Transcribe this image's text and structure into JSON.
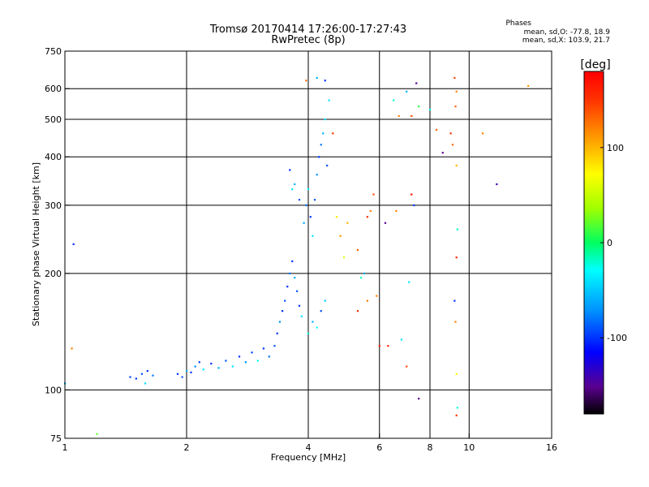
{
  "title_line1": "Tromsø 20170414 17:26:00-17:27:43",
  "title_line2": "RwPretec (8p)",
  "phases": {
    "title": "Phases",
    "o_line": "mean, sd,O: -77.8, 18.9",
    "x_line": "mean, sd,X: 103.9, 21.7"
  },
  "colorbar": {
    "unit_label": "[deg]",
    "ticks": [
      {
        "value": 100,
        "label": "100"
      },
      {
        "value": 0,
        "label": "0"
      },
      {
        "value": -100,
        "label": "-100"
      }
    ],
    "range": [
      -180,
      180
    ]
  },
  "chart_data": {
    "type": "scatter",
    "xlabel": "Frequency [MHz]",
    "ylabel": "Stationary phase Virtual Height [km]",
    "xscale": "log",
    "yscale": "log",
    "xlim": [
      1,
      16
    ],
    "ylim": [
      75,
      750
    ],
    "xticks": [
      {
        "value": 1,
        "label": "1"
      },
      {
        "value": 2,
        "label": "2"
      },
      {
        "value": 4,
        "label": "4"
      },
      {
        "value": 6,
        "label": "6"
      },
      {
        "value": 8,
        "label": "8"
      },
      {
        "value": 10,
        "label": "10"
      },
      {
        "value": 16,
        "label": "16"
      }
    ],
    "yticks": [
      {
        "value": 75,
        "label": "75"
      },
      {
        "value": 100,
        "label": "100"
      },
      {
        "value": 200,
        "label": "200"
      },
      {
        "value": 300,
        "label": "300"
      },
      {
        "value": 400,
        "label": "400"
      },
      {
        "value": 500,
        "label": "500"
      },
      {
        "value": 600,
        "label": "600"
      },
      {
        "value": 750,
        "label": "750"
      }
    ],
    "vgrid": [
      2,
      4,
      6,
      8,
      10
    ],
    "hgrid": [
      100,
      200,
      300,
      400,
      500,
      600
    ],
    "points": [
      [
        1.0,
        104,
        -60
      ],
      [
        1.05,
        238,
        -100
      ],
      [
        1.04,
        128,
        120
      ],
      [
        1.2,
        77,
        20
      ],
      [
        1.45,
        108,
        -95
      ],
      [
        1.5,
        107,
        -100
      ],
      [
        1.55,
        110,
        -90
      ],
      [
        1.58,
        104,
        -40
      ],
      [
        1.6,
        112,
        -100
      ],
      [
        1.65,
        109,
        -80
      ],
      [
        1.9,
        110,
        -100
      ],
      [
        1.95,
        108,
        -90
      ],
      [
        2.0,
        112,
        -60
      ],
      [
        2.05,
        111,
        -100
      ],
      [
        2.1,
        115,
        -70
      ],
      [
        2.15,
        118,
        -95
      ],
      [
        2.2,
        113,
        -40
      ],
      [
        2.3,
        117,
        -100
      ],
      [
        2.4,
        114,
        -60
      ],
      [
        2.5,
        119,
        -90
      ],
      [
        2.6,
        115,
        -40
      ],
      [
        2.7,
        122,
        -100
      ],
      [
        2.8,
        118,
        -70
      ],
      [
        2.9,
        125,
        -95
      ],
      [
        3.0,
        119,
        -30
      ],
      [
        3.1,
        128,
        -100
      ],
      [
        3.2,
        122,
        -80
      ],
      [
        3.3,
        130,
        -90
      ],
      [
        3.35,
        140,
        -100
      ],
      [
        3.4,
        150,
        -70
      ],
      [
        3.45,
        160,
        -100
      ],
      [
        3.5,
        170,
        -90
      ],
      [
        3.55,
        185,
        -100
      ],
      [
        3.6,
        200,
        -80
      ],
      [
        3.65,
        215,
        -100
      ],
      [
        3.7,
        195,
        -60
      ],
      [
        3.75,
        180,
        -90
      ],
      [
        3.8,
        165,
        -100
      ],
      [
        3.85,
        155,
        -40
      ],
      [
        3.9,
        270,
        -60
      ],
      [
        3.95,
        300,
        -80
      ],
      [
        4.0,
        330,
        -30
      ],
      [
        4.05,
        280,
        -100
      ],
      [
        4.1,
        250,
        -40
      ],
      [
        4.15,
        310,
        -90
      ],
      [
        4.2,
        360,
        -70
      ],
      [
        4.25,
        400,
        -100
      ],
      [
        4.3,
        430,
        -80
      ],
      [
        4.35,
        460,
        -60
      ],
      [
        4.4,
        500,
        -40
      ],
      [
        4.45,
        380,
        -90
      ],
      [
        4.0,
        140,
        -20
      ],
      [
        4.1,
        150,
        -60
      ],
      [
        4.2,
        145,
        -30
      ],
      [
        4.3,
        160,
        -90
      ],
      [
        4.4,
        170,
        -50
      ],
      [
        3.7,
        340,
        -60
      ],
      [
        3.6,
        370,
        -100
      ],
      [
        3.65,
        330,
        -40
      ],
      [
        3.8,
        310,
        -90
      ],
      [
        4.2,
        640,
        -60
      ],
      [
        4.4,
        630,
        -100
      ],
      [
        4.5,
        560,
        -40
      ],
      [
        3.95,
        630,
        130
      ],
      [
        4.6,
        460,
        150
      ],
      [
        4.7,
        280,
        80
      ],
      [
        4.8,
        250,
        110
      ],
      [
        4.9,
        220,
        60
      ],
      [
        5.0,
        270,
        100
      ],
      [
        5.3,
        230,
        130
      ],
      [
        5.5,
        200,
        -60
      ],
      [
        5.6,
        280,
        150
      ],
      [
        5.7,
        290,
        120
      ],
      [
        5.8,
        320,
        140
      ],
      [
        5.9,
        175,
        120
      ],
      [
        6.0,
        130,
        160
      ],
      [
        6.2,
        270,
        -150
      ],
      [
        5.3,
        160,
        150
      ],
      [
        5.4,
        195,
        -20
      ],
      [
        5.6,
        170,
        120
      ],
      [
        6.5,
        560,
        -20
      ],
      [
        6.7,
        510,
        120
      ],
      [
        7.0,
        590,
        -60
      ],
      [
        7.2,
        510,
        140
      ],
      [
        7.4,
        620,
        -150
      ],
      [
        7.5,
        540,
        10
      ],
      [
        7.2,
        320,
        170
      ],
      [
        7.3,
        300,
        -100
      ],
      [
        7.1,
        190,
        -40
      ],
      [
        7.5,
        95,
        -150
      ],
      [
        8.0,
        530,
        -30
      ],
      [
        8.3,
        470,
        130
      ],
      [
        8.6,
        410,
        -150
      ],
      [
        9.0,
        460,
        150
      ],
      [
        9.1,
        430,
        130
      ],
      [
        9.2,
        640,
        140
      ],
      [
        9.3,
        590,
        120
      ],
      [
        9.25,
        540,
        130
      ],
      [
        9.3,
        380,
        100
      ],
      [
        9.35,
        260,
        -20
      ],
      [
        9.3,
        220,
        160
      ],
      [
        9.2,
        170,
        -100
      ],
      [
        9.25,
        150,
        120
      ],
      [
        9.3,
        110,
        70
      ],
      [
        9.35,
        90,
        -20
      ],
      [
        9.3,
        86,
        150
      ],
      [
        10.8,
        460,
        120
      ],
      [
        11.7,
        340,
        -140
      ],
      [
        14.0,
        610,
        110
      ],
      [
        6.3,
        130,
        160
      ],
      [
        6.6,
        290,
        120
      ],
      [
        6.8,
        135,
        -40
      ],
      [
        7.0,
        115,
        140
      ]
    ]
  }
}
